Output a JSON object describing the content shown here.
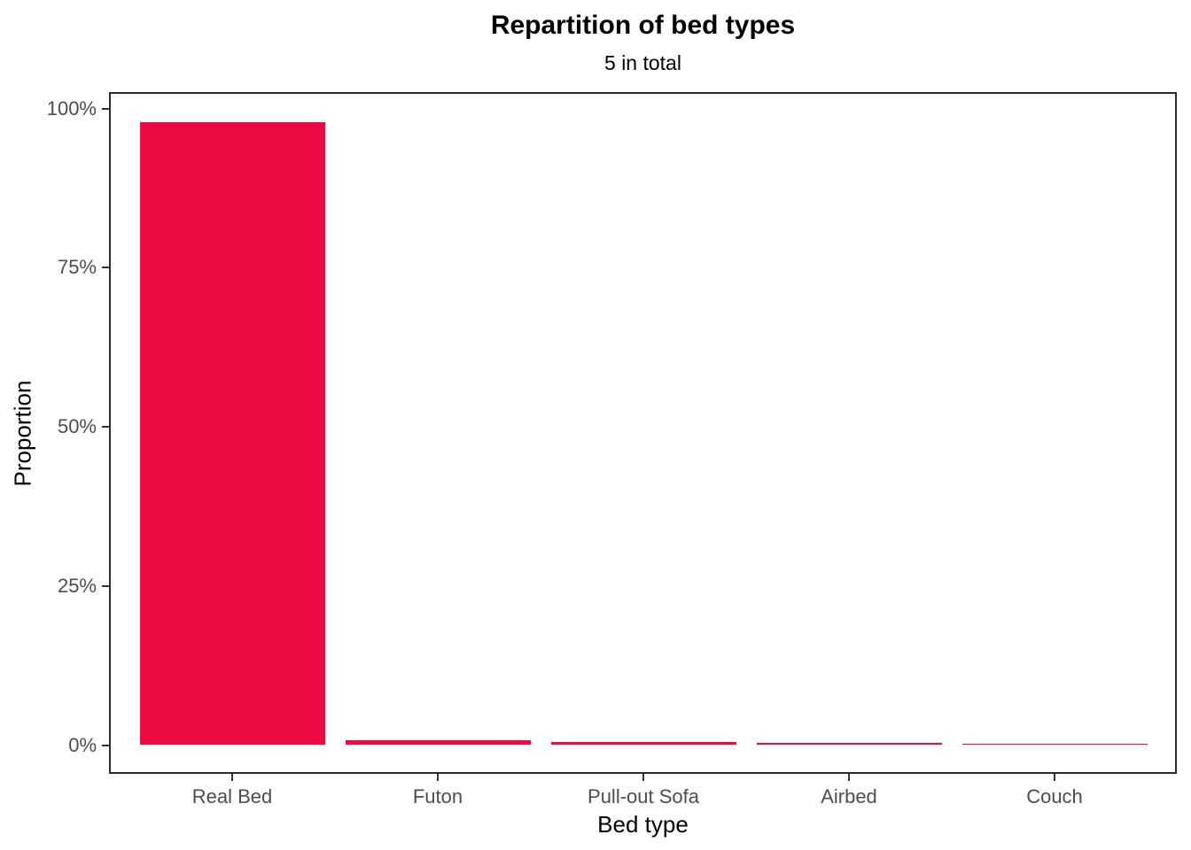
{
  "chart_data": {
    "type": "bar",
    "title": "Repartition of bed types",
    "subtitle": "5 in total",
    "xlabel": "Bed type",
    "ylabel": "Proportion",
    "categories": [
      "Real Bed",
      "Futon",
      "Pull-out Sofa",
      "Airbed",
      "Couch"
    ],
    "values": [
      97.8,
      0.7,
      0.45,
      0.4,
      0.2
    ],
    "value_unit": "%",
    "y_ticks": [
      {
        "label": "0%",
        "value": 0
      },
      {
        "label": "25%",
        "value": 25
      },
      {
        "label": "50%",
        "value": 50
      },
      {
        "label": "75%",
        "value": 75
      },
      {
        "label": "100%",
        "value": 100
      }
    ],
    "ylim": [
      0,
      100
    ],
    "grid": false,
    "legend": "none",
    "colors": {
      "bar_fill": "#EE0A42",
      "panel_border": "#2B2B2B",
      "tick_mark": "#333333",
      "tick_label": "#4D4D4D",
      "axis_title": "#000000",
      "title_text": "#000000",
      "background": "#FFFFFF"
    }
  }
}
